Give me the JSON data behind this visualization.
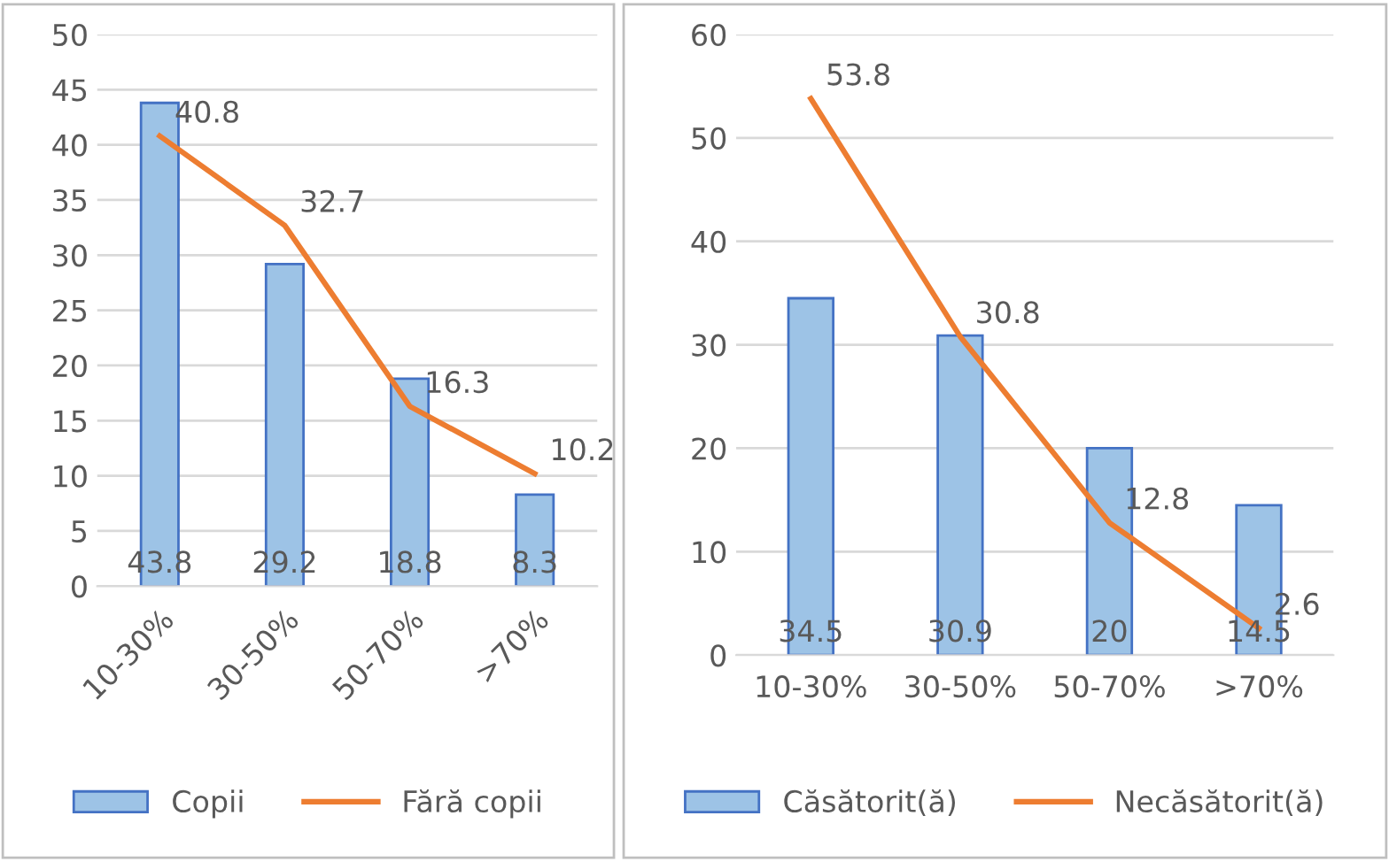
{
  "chart_data": [
    {
      "type": "bar",
      "categories": [
        "10-30%",
        "30-50%",
        "50-70%",
        ">70%"
      ],
      "ylim": [
        0,
        50
      ],
      "yticks": [
        0,
        5,
        10,
        15,
        20,
        25,
        30,
        35,
        40,
        45,
        50
      ],
      "grid": "y",
      "legend": "bottom",
      "data_labels": true,
      "series": [
        {
          "name": "Copii",
          "color": "#9dc3e6",
          "values": [
            43.8,
            29.2,
            18.8,
            8.3
          ]
        },
        {
          "name": "Fără copii",
          "type": "line",
          "color": "#ed7d31",
          "values": [
            40.8,
            32.7,
            16.3,
            10.2
          ]
        }
      ]
    },
    {
      "type": "bar",
      "categories": [
        "10-30%",
        "30-50%",
        "50-70%",
        ">70%"
      ],
      "ylim": [
        0,
        60
      ],
      "yticks": [
        0,
        10,
        20,
        30,
        40,
        50,
        60
      ],
      "grid": "y",
      "legend": "bottom",
      "data_labels": true,
      "series": [
        {
          "name": "Căsătorit(ă)",
          "color": "#9dc3e6",
          "values": [
            34.5,
            30.9,
            20,
            14.5
          ]
        },
        {
          "name": "Necăsătorit(ă)",
          "type": "line",
          "color": "#ed7d31",
          "values": [
            53.8,
            30.8,
            12.8,
            2.6
          ]
        }
      ]
    }
  ]
}
